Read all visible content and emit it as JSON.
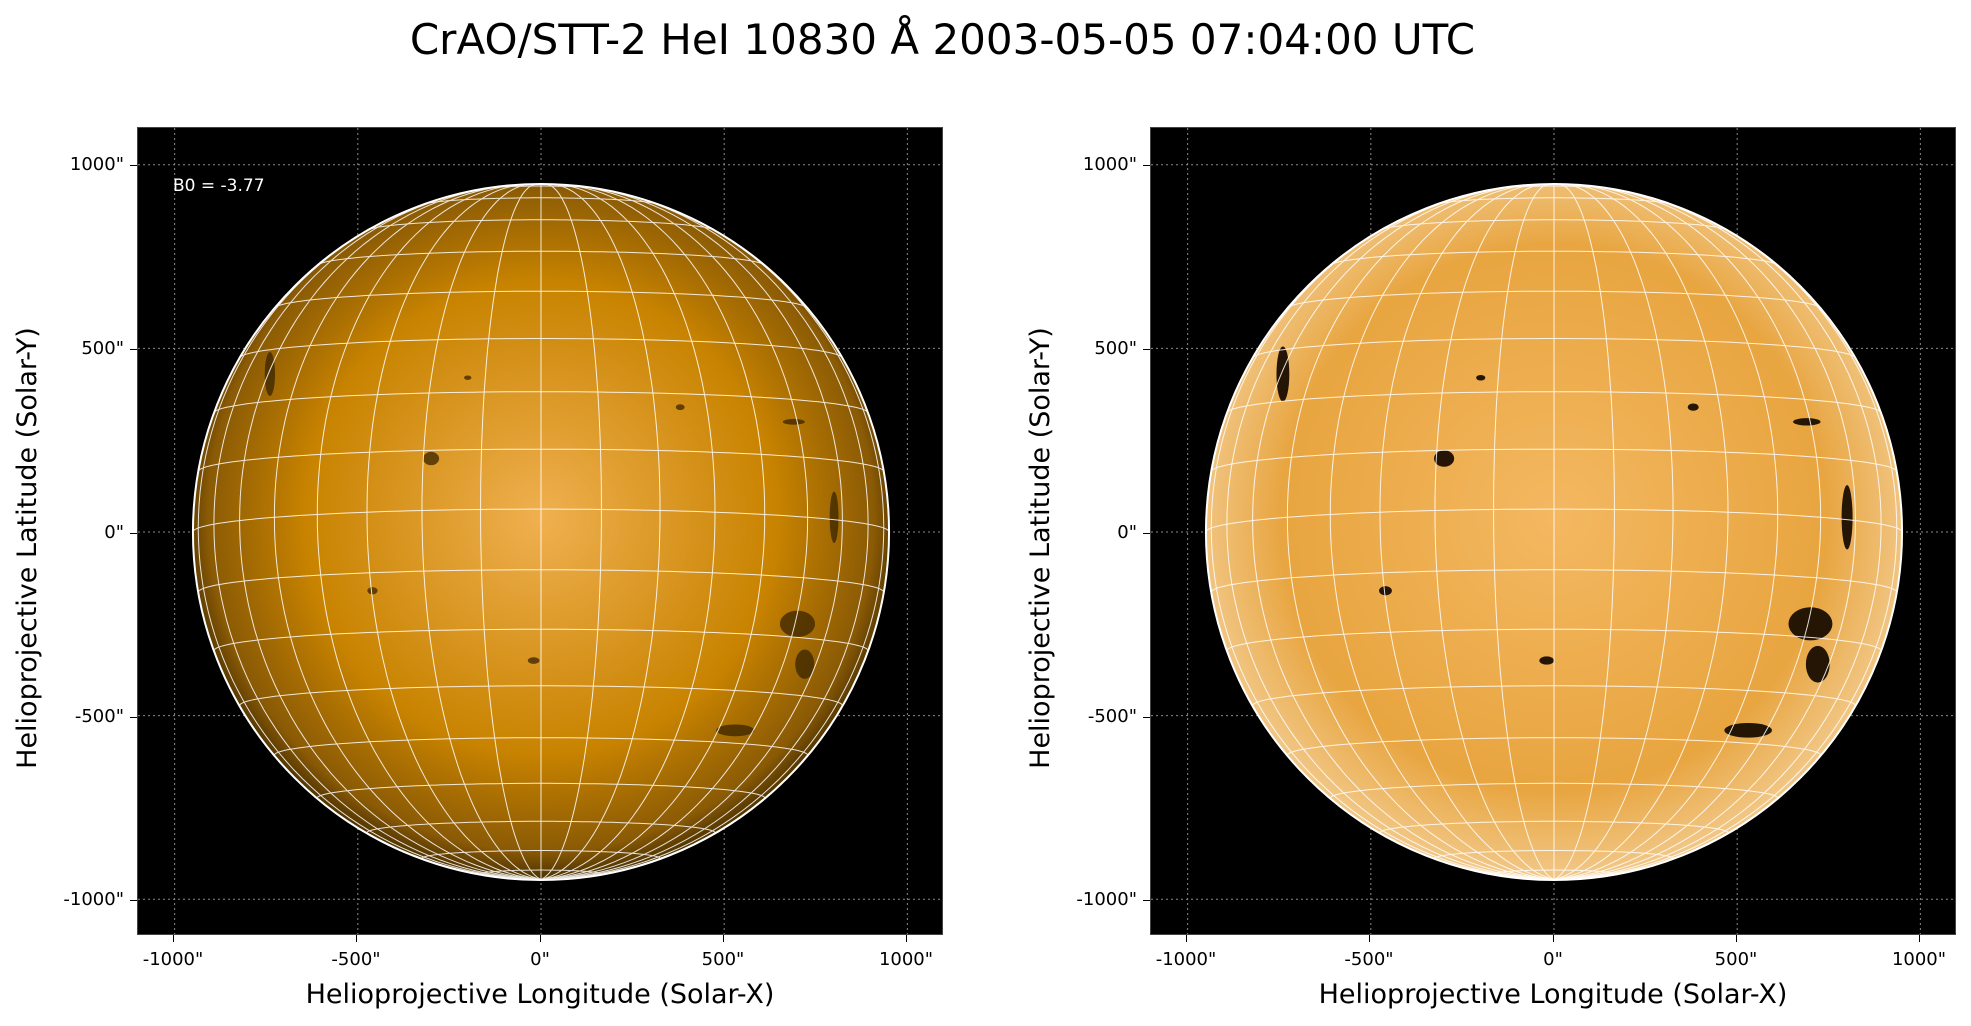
{
  "title": "CrAO/STT-2 HeI 10830 Å 2003-05-05 07:04:00 UTC",
  "colors": {
    "background": "#000000",
    "disk_mid": "#c88300",
    "disk_light": "#f0b050",
    "grid": "#ffffff",
    "limb": "#ffffff"
  },
  "panels": [
    {
      "name": "left",
      "contrast": "normal",
      "annotation": "B0 = -3.77",
      "xlabel": "Helioprojective Longitude (Solar-X)",
      "ylabel": "Helioprojective Latitude (Solar-Y)",
      "xticks": [
        "-1000\"",
        "-500\"",
        "0\"",
        "500\"",
        "1000\""
      ],
      "yticks": [
        "1000\"",
        "500\"",
        "0\"",
        "-500\"",
        "-1000\""
      ],
      "xlim": [
        -1100,
        1100
      ],
      "ylim": [
        -1100,
        1100
      ],
      "solar_radius_arcsec": 950,
      "grid_spacing_deg": 10
    },
    {
      "name": "right",
      "contrast": "enhanced",
      "xlabel": "Helioprojective Longitude (Solar-X)",
      "ylabel": "Helioprojective Latitude (Solar-Y)",
      "xticks": [
        "-1000\"",
        "-500\"",
        "0\"",
        "500\"",
        "1000\""
      ],
      "yticks": [
        "1000\"",
        "500\"",
        "0\"",
        "-500\"",
        "-1000\""
      ],
      "xlim": [
        -1100,
        1100
      ],
      "ylim": [
        -1100,
        1100
      ],
      "solar_radius_arcsec": 950,
      "grid_spacing_deg": 10
    }
  ]
}
